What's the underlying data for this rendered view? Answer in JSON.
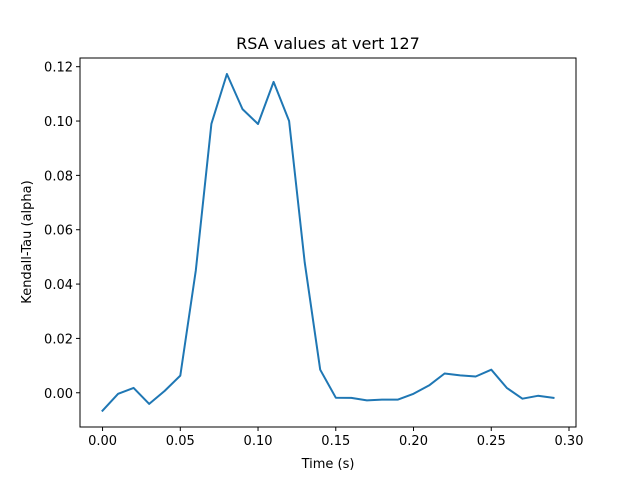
{
  "chart_data": {
    "type": "line",
    "title": "RSA values at vert 127",
    "xlabel": "Time (s)",
    "ylabel": "Kendall-Tau (alpha)",
    "xlim": [
      -0.0145,
      0.3045
    ],
    "ylim": [
      -0.0126,
      0.1232
    ],
    "grid": false,
    "legend": null,
    "xticks": [
      0.0,
      0.05,
      0.1,
      0.15,
      0.2,
      0.25,
      0.3
    ],
    "xtick_labels": [
      "0.00",
      "0.05",
      "0.10",
      "0.15",
      "0.20",
      "0.25",
      "0.30"
    ],
    "yticks": [
      0.0,
      0.02,
      0.04,
      0.06,
      0.08,
      0.1,
      0.12
    ],
    "ytick_labels": [
      "0.00",
      "0.02",
      "0.04",
      "0.06",
      "0.08",
      "0.10",
      "0.12"
    ],
    "series": [
      {
        "name": "RSA",
        "color": "#1f77b4",
        "x": [
          0.0,
          0.01,
          0.02,
          0.03,
          0.04,
          0.05,
          0.06,
          0.07,
          0.08,
          0.09,
          0.1,
          0.11,
          0.12,
          0.13,
          0.14,
          0.15,
          0.16,
          0.17,
          0.18,
          0.19,
          0.2,
          0.21,
          0.22,
          0.23,
          0.24,
          0.25,
          0.26,
          0.27,
          0.28,
          0.29
        ],
        "values": [
          -0.0066,
          -0.0004,
          0.0018,
          -0.0041,
          0.0007,
          0.0063,
          0.045,
          0.099,
          0.1173,
          0.1044,
          0.0989,
          0.1144,
          0.1,
          0.048,
          0.0085,
          -0.0018,
          -0.0019,
          -0.0028,
          -0.0025,
          -0.0025,
          -0.0004,
          0.0027,
          0.0071,
          0.0064,
          0.006,
          0.0085,
          0.0018,
          -0.0022,
          -0.0011,
          -0.0019
        ]
      }
    ]
  }
}
